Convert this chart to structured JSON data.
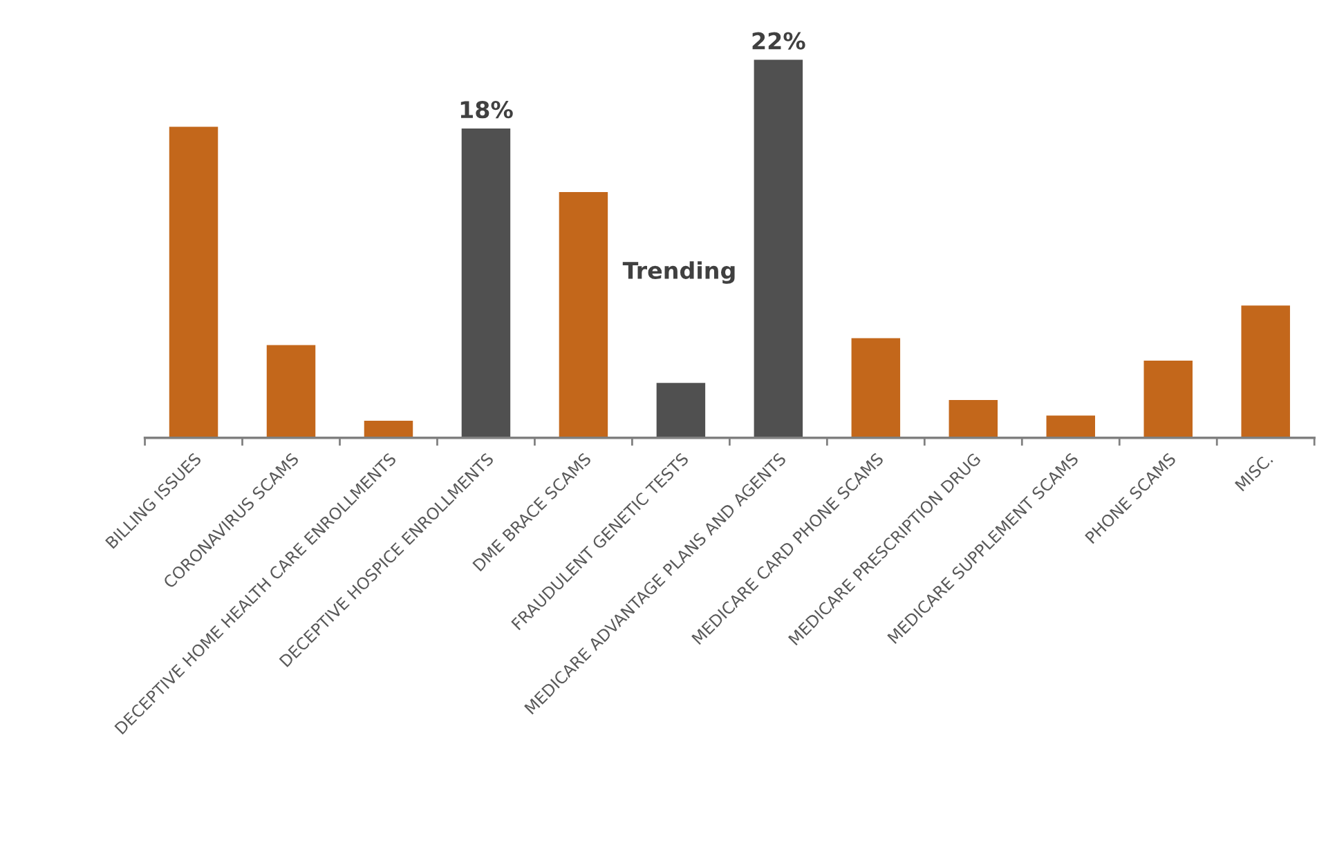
{
  "chart_data": {
    "type": "bar",
    "tick_labels": "x",
    "categories": [
      "BILLING ISSUES",
      "CORONAVIRUS SCAMS",
      "DECEPTIVE HOME HEALTH CARE ENROLLMENTS",
      "DECEPTIVE HOSPICE ENROLLMENTS",
      "DME BRACE SCAMS",
      "FRAUDULENT GENETIC TESTS",
      "MEDICARE ADVANTAGE PLANS AND AGENTS",
      "MEDICARE CARD PHONE SCAMS",
      "MEDICARE PRESCRIPTION DRUG",
      "MEDICARE SUPPLEMENT SCAMS",
      "PHONE SCAMS",
      "MISC."
    ],
    "values": [
      18.1,
      5.4,
      1.0,
      18,
      14.3,
      3.2,
      22,
      5.8,
      2.2,
      1.3,
      4.5,
      7.7
    ],
    "colors": [
      "#c3671b",
      "#c3671b",
      "#c3671b",
      "#505050",
      "#c3671b",
      "#505050",
      "#505050",
      "#c3671b",
      "#c3671b",
      "#c3671b",
      "#c3671b",
      "#c3671b"
    ],
    "value_labels": [
      null,
      null,
      null,
      "18%",
      null,
      null,
      "22%",
      null,
      null,
      null,
      null,
      null
    ],
    "annotations": [
      "Trending"
    ]
  }
}
